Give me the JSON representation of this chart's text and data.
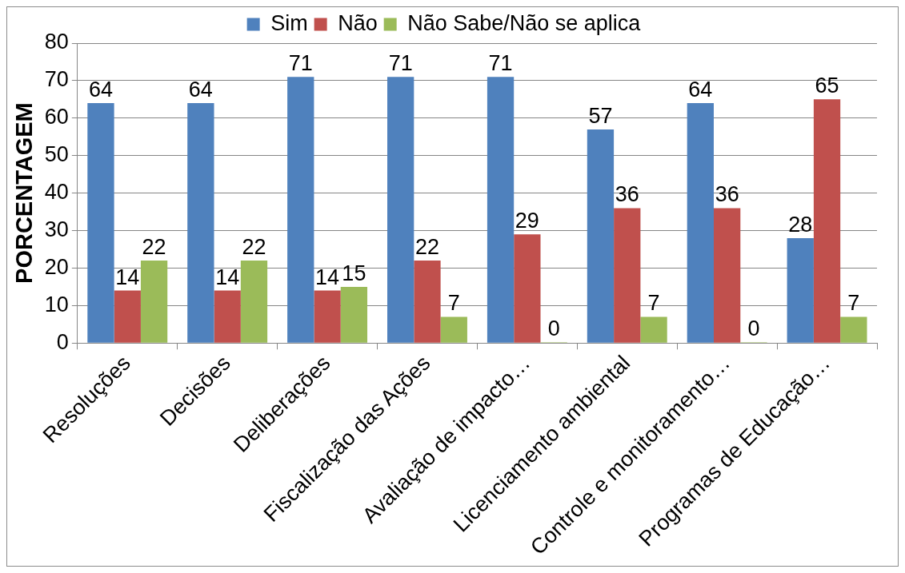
{
  "chart_data": {
    "type": "bar",
    "ylabel": "PORCENTAGEM",
    "categories": [
      "Resoluções",
      "Decisões",
      "Deliberações",
      "Fiscalização das Ações",
      "Avaliação de impacto…",
      "Licenciamento ambiental",
      "Controle e monitoramento…",
      "Programas de Educação…"
    ],
    "series": [
      {
        "name": "Sim",
        "color": "#4f81bd",
        "values": [
          64,
          64,
          71,
          71,
          71,
          57,
          64,
          28
        ]
      },
      {
        "name": "Não",
        "color": "#c0504d",
        "values": [
          14,
          14,
          14,
          22,
          29,
          36,
          36,
          65
        ]
      },
      {
        "name": "Não Sabe/Não se aplica",
        "color": "#9bbb59",
        "values": [
          22,
          22,
          15,
          7,
          0,
          7,
          0,
          7
        ]
      }
    ],
    "ylim": [
      0,
      80
    ],
    "yticks": [
      0,
      10,
      20,
      30,
      40,
      50,
      60,
      70,
      80
    ],
    "grid": "y",
    "legend": "top",
    "data_labels": true
  }
}
